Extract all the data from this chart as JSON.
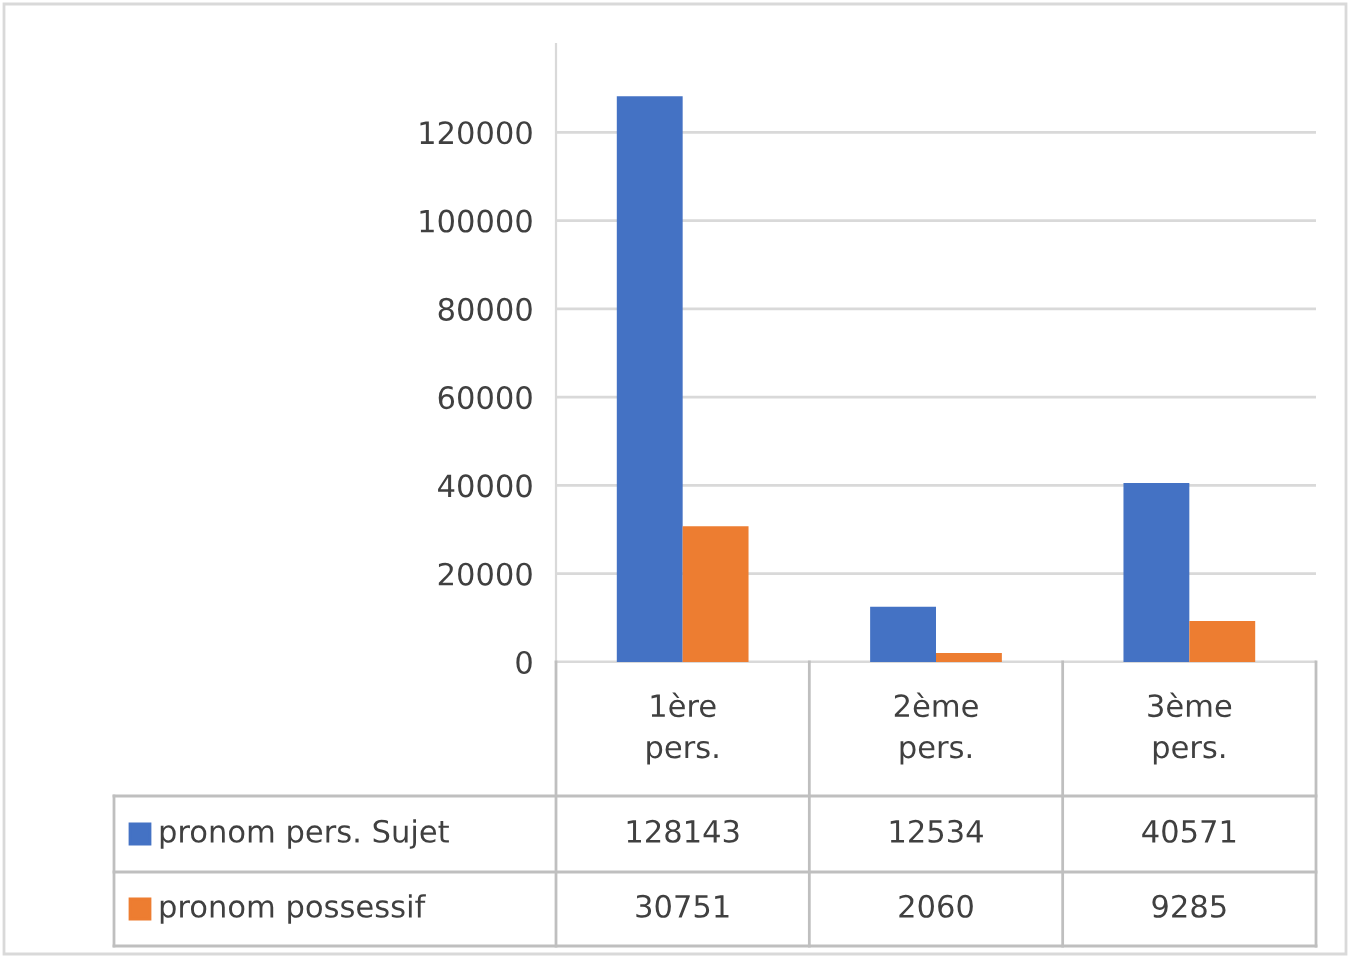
{
  "chart_data": {
    "type": "bar",
    "categories": [
      "1ère pers.",
      "2ème pers.",
      "3ème pers."
    ],
    "series": [
      {
        "name": "pronom pers. Sujet",
        "color": "#4472c4",
        "values": [
          128143,
          12534,
          40571
        ]
      },
      {
        "name": "pronom possessif",
        "color": "#ed7d31",
        "values": [
          30751,
          2060,
          9285
        ]
      }
    ],
    "ylim": [
      0,
      140000
    ],
    "yticks": [
      0,
      20000,
      40000,
      60000,
      80000,
      100000,
      120000
    ],
    "grid": "y",
    "legend": "bottom",
    "data_labels": true
  }
}
